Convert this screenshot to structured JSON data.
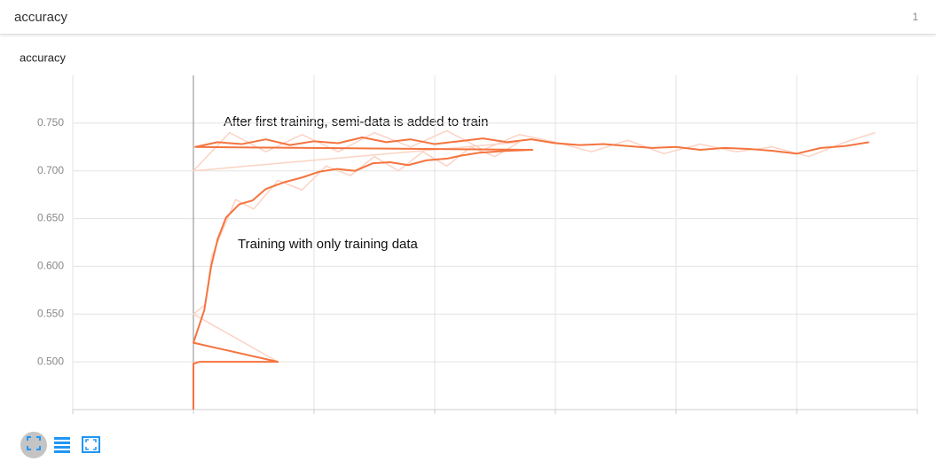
{
  "header": {
    "title": "accuracy",
    "count": 1
  },
  "chart_data": {
    "type": "line",
    "title": "accuracy",
    "xlim": [
      -1,
      6
    ],
    "xticks": [
      -1,
      0,
      1,
      2,
      3,
      4,
      5,
      6
    ],
    "ylim": [
      0.45,
      0.8
    ],
    "yticks": [
      {
        "value": 0.5,
        "label": "0.500"
      },
      {
        "value": 0.55,
        "label": "0.550"
      },
      {
        "value": 0.6,
        "label": "0.600"
      },
      {
        "value": 0.65,
        "label": "0.650"
      },
      {
        "value": 0.7,
        "label": "0.700"
      },
      {
        "value": 0.75,
        "label": "0.750"
      }
    ],
    "grid": true,
    "annotations": [
      "After first training, semi-data is added to train",
      "Training with only training data"
    ],
    "series": [
      {
        "color": "#fbd3c4",
        "x": [
          0,
          0.3,
          0.7,
          0,
          0.1,
          0.15,
          0.25,
          0.35,
          0.5,
          0.7,
          0.9,
          1.1,
          1.3,
          1.5,
          1.7,
          1.9,
          2.1,
          2.3,
          2.5,
          2.7,
          0,
          0.3,
          0.6,
          0.9,
          1.2,
          1.5,
          1.8,
          2.1,
          2.4,
          2.7,
          3.0,
          3.3,
          3.6,
          3.9,
          4.2,
          4.5,
          4.8,
          5.1,
          5.4,
          5.65
        ],
        "values": [
          0.5,
          0.5,
          0.5,
          0.55,
          0.56,
          0.61,
          0.64,
          0.67,
          0.66,
          0.69,
          0.68,
          0.705,
          0.695,
          0.715,
          0.7,
          0.72,
          0.705,
          0.725,
          0.715,
          0.73,
          0.7,
          0.74,
          0.72,
          0.738,
          0.72,
          0.74,
          0.725,
          0.742,
          0.722,
          0.738,
          0.73,
          0.72,
          0.732,
          0.718,
          0.728,
          0.72,
          0.725,
          0.715,
          0.73,
          0.74
        ]
      },
      {
        "color": "#f4743f",
        "x": [
          0,
          0,
          0.05,
          0.7,
          0,
          0.09,
          0.147,
          0.2,
          0.27,
          0.38,
          0.49,
          0.6,
          0.75,
          0.9,
          1.04,
          1.19,
          1.34,
          1.49,
          1.63,
          1.78,
          1.93,
          2.11,
          2.22,
          2.37,
          2.6,
          2.81,
          0.015,
          0.2,
          0.4,
          0.6,
          0.8,
          1.0,
          1.2,
          1.4,
          1.6,
          1.8,
          2.0,
          2.2,
          2.4,
          2.6,
          2.8,
          3.0,
          3.2,
          3.4,
          3.6,
          3.8,
          4.0,
          4.2,
          4.4,
          4.6,
          4.8,
          5.0,
          5.2,
          5.4,
          5.6
        ],
        "values": [
          0.45,
          0.498,
          0.5,
          0.5,
          0.52,
          0.554,
          0.6,
          0.628,
          0.651,
          0.665,
          0.669,
          0.681,
          0.688,
          0.693,
          0.699,
          0.702,
          0.7,
          0.708,
          0.709,
          0.706,
          0.711,
          0.713,
          0.716,
          0.719,
          0.721,
          0.722,
          0.725,
          0.73,
          0.728,
          0.733,
          0.727,
          0.731,
          0.729,
          0.735,
          0.73,
          0.733,
          0.728,
          0.731,
          0.734,
          0.73,
          0.733,
          0.729,
          0.727,
          0.728,
          0.726,
          0.724,
          0.725,
          0.722,
          0.724,
          0.723,
          0.721,
          0.718,
          0.724,
          0.726,
          0.73
        ]
      }
    ]
  }
}
